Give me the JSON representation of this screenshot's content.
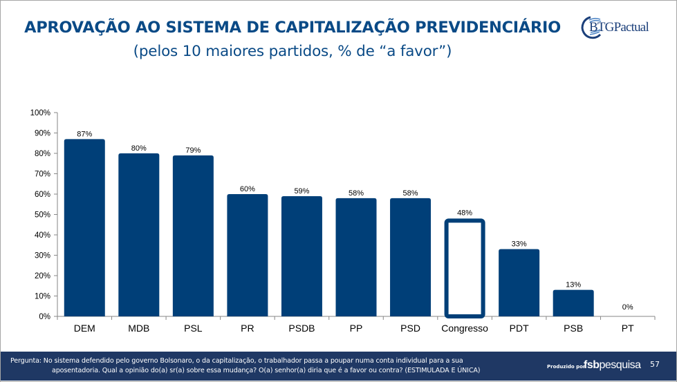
{
  "slide": {
    "title": "APROVAÇÃO AO SISTEMA DE CAPITALIZAÇÃO PREVIDENCIÁRIO",
    "subtitle": "(pelos 10 maiores partidos, % de “a favor”)",
    "logo_text": "BTGPactual",
    "page_number": "57"
  },
  "footer": {
    "question_line1": "Pergunta: No sistema defendido pelo governo Bolsonaro, o da capitalização, o trabalhador passa a poupar numa conta individual para a sua",
    "question_line2": "aposentadoria. Qual a opinião do(a) sr(a) sobre essa mudança? O(a) senhor(a) diria que é a favor ou contra? (ESTIMULADA E ÚNICA)",
    "produced_by": "Produzido por",
    "producer_bold": "fsb",
    "producer_rest": "pesquisa"
  },
  "colors": {
    "bar": "#003f78",
    "title": "#0a4a86",
    "footer_bg": "#1f3864",
    "axis": "#868686"
  },
  "chart_data": {
    "type": "bar",
    "title": "APROVAÇÃO AO SISTEMA DE CAPITALIZAÇÃO PREVIDENCIÁRIO",
    "subtitle": "(pelos 10 maiores partidos, % de “a favor”)",
    "xlabel": "",
    "ylabel": "",
    "ylim": [
      0,
      100
    ],
    "yticks": [
      0,
      10,
      20,
      30,
      40,
      50,
      60,
      70,
      80,
      90,
      100
    ],
    "ytick_labels": [
      "0%",
      "10%",
      "20%",
      "30%",
      "40%",
      "50%",
      "60%",
      "70%",
      "80%",
      "90%",
      "100%"
    ],
    "grid": false,
    "legend": "none",
    "categories": [
      "DEM",
      "MDB",
      "PSL",
      "PR",
      "PSDB",
      "PP",
      "PSD",
      "Congresso",
      "PDT",
      "PSB",
      "PT"
    ],
    "values": [
      87,
      80,
      79,
      60,
      59,
      58,
      58,
      48,
      33,
      13,
      0
    ],
    "data_labels": [
      "87%",
      "80%",
      "79%",
      "60%",
      "59%",
      "58%",
      "58%",
      "48%",
      "33%",
      "13%",
      "0%"
    ],
    "highlight": {
      "category": "Congresso",
      "style": "outline"
    }
  }
}
